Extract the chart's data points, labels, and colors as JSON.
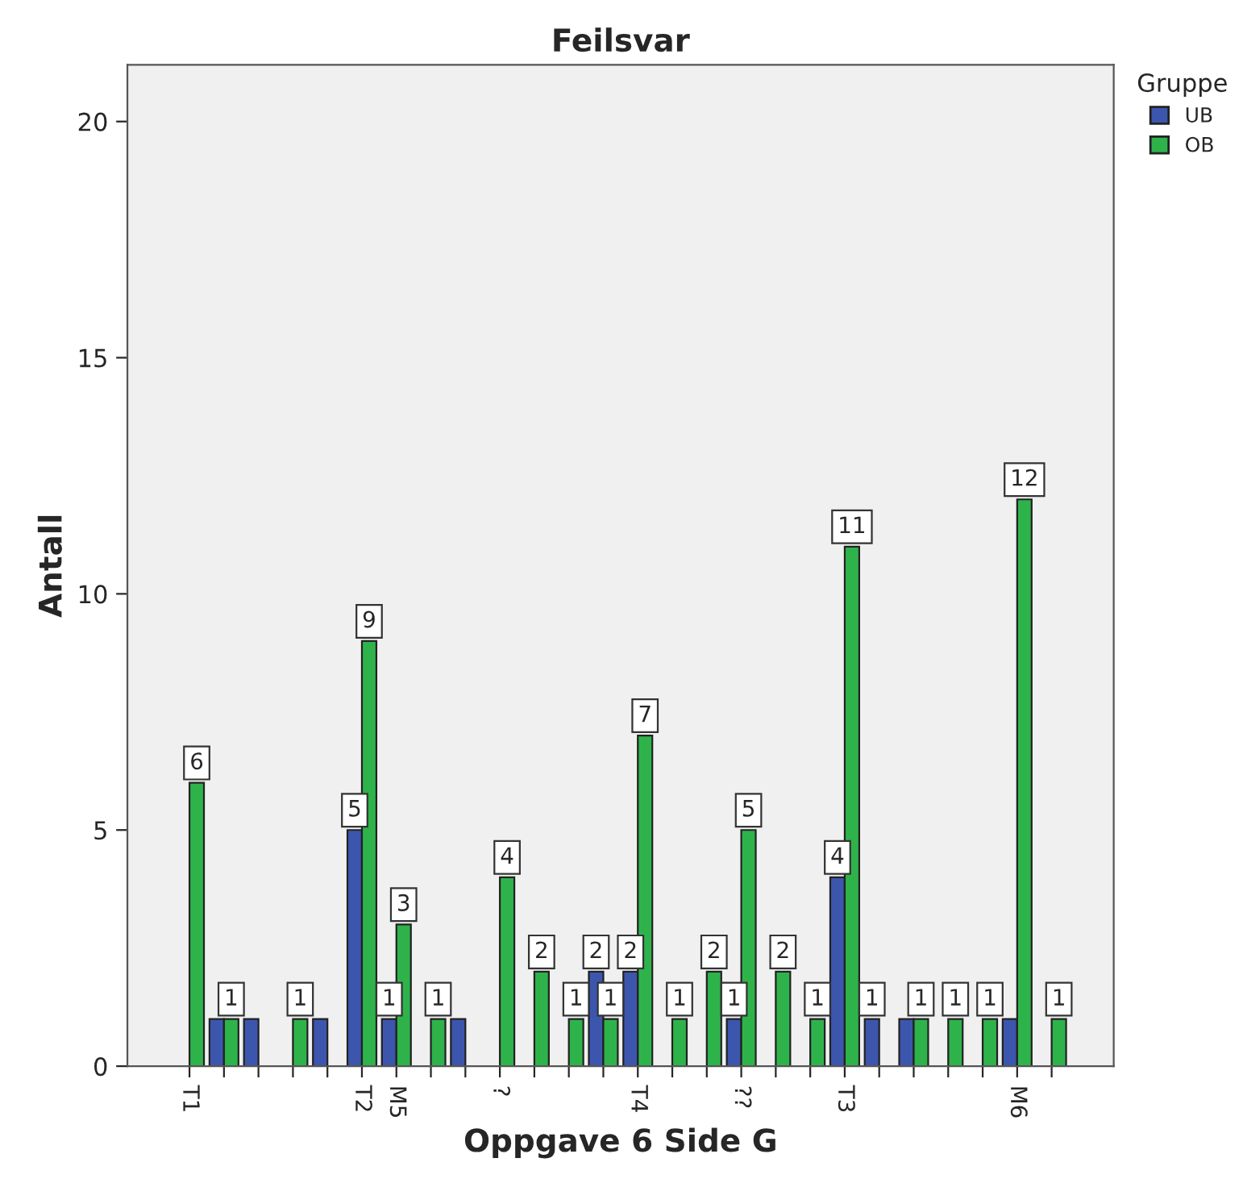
{
  "chart_data": {
    "type": "bar",
    "title": "Feilsvar",
    "xlabel": "Oppgave 6 Side G",
    "ylabel": "Antall",
    "legend_title": "Gruppe",
    "categories": [
      "T1",
      null,
      null,
      null,
      null,
      "T2",
      "M5",
      null,
      null,
      "?",
      null,
      null,
      null,
      "T4",
      null,
      null,
      "??",
      null,
      null,
      "T3",
      null,
      null,
      null,
      null,
      "M6",
      null
    ],
    "series": [
      {
        "name": "UB",
        "color": "#3d56ad",
        "values": [
          null,
          1,
          1,
          null,
          1,
          5,
          1,
          null,
          1,
          null,
          null,
          null,
          2,
          2,
          null,
          null,
          1,
          null,
          null,
          4,
          1,
          1,
          null,
          null,
          1,
          null
        ],
        "value_labels": [
          null,
          null,
          null,
          null,
          null,
          "5",
          "1",
          null,
          null,
          null,
          null,
          null,
          "2",
          "2",
          null,
          null,
          "1",
          null,
          null,
          "4",
          "1",
          null,
          null,
          null,
          null,
          null
        ]
      },
      {
        "name": "OB",
        "color": "#2eb34b",
        "values": [
          6,
          1,
          null,
          1,
          null,
          9,
          3,
          1,
          null,
          4,
          2,
          1,
          1,
          7,
          1,
          2,
          5,
          2,
          1,
          11,
          null,
          1,
          1,
          1,
          12,
          1
        ],
        "value_labels": [
          "6",
          "1",
          null,
          "1",
          null,
          "9",
          "3",
          "1",
          null,
          "4",
          "2",
          "1",
          "1",
          "7",
          "1",
          "2",
          "5",
          "2",
          "1",
          "11",
          null,
          "1",
          "1",
          "1",
          "12",
          "1"
        ]
      }
    ],
    "ylim": [
      0,
      21.2
    ],
    "yticks": [
      0,
      5,
      10,
      15,
      20
    ],
    "grid": false,
    "legend": "top right"
  }
}
